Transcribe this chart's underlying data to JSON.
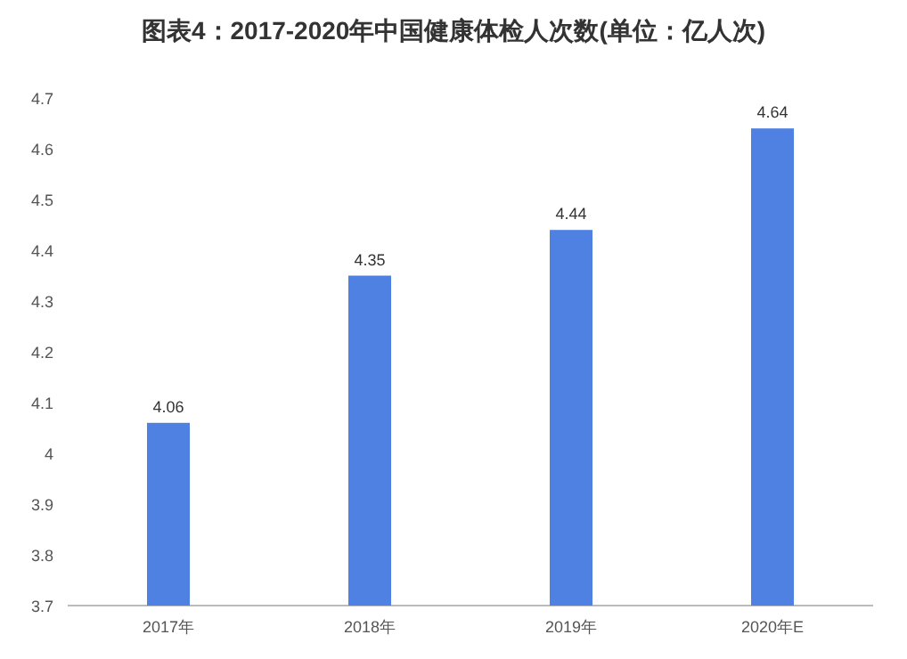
{
  "chart_data": {
    "type": "bar",
    "title": "图表4：2017-2020年中国健康体检人次数(单位：亿人次)",
    "categories": [
      "2017年",
      "2018年",
      "2019年",
      "2020年E"
    ],
    "series": [
      {
        "color": "#4f81e3",
        "values": [
          4.06,
          4.35,
          4.44,
          4.64
        ]
      }
    ],
    "ylim": [
      3.7,
      4.7
    ],
    "yticks": [
      3.7,
      3.8,
      3.9,
      4,
      4.1,
      4.2,
      4.3,
      4.4,
      4.5,
      4.6,
      4.7
    ],
    "data_labels": true,
    "grid": false
  }
}
